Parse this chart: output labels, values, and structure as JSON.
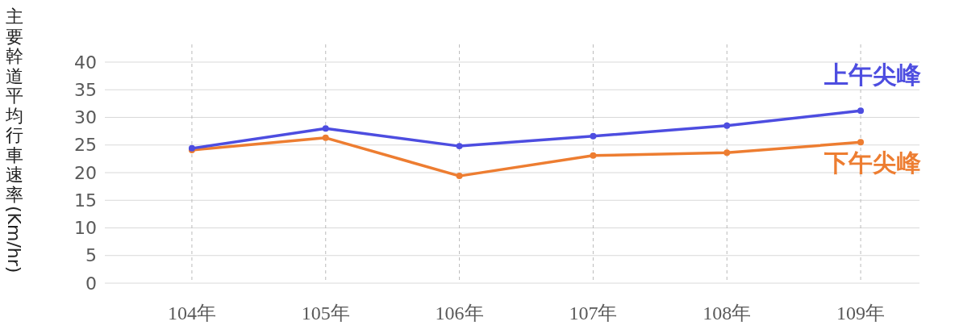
{
  "chart_data": {
    "type": "line",
    "ylabel": "主要幹道平均行車速率(Km/hr)",
    "categories": [
      "104年",
      "105年",
      "106年",
      "107年",
      "108年",
      "109年"
    ],
    "series": [
      {
        "name": "上午尖峰",
        "color": "#4d4de0",
        "values": [
          24.4,
          28.0,
          24.8,
          26.6,
          28.5,
          31.2
        ]
      },
      {
        "name": "下午尖峰",
        "color": "#ed7d31",
        "values": [
          24.1,
          26.3,
          19.4,
          23.1,
          23.6,
          25.5
        ]
      }
    ],
    "ylim": [
      0,
      40
    ],
    "yticks": [
      0,
      5,
      10,
      15,
      20,
      25,
      30,
      35,
      40
    ],
    "grid": true,
    "marker": "circle",
    "line_style": "solid"
  }
}
